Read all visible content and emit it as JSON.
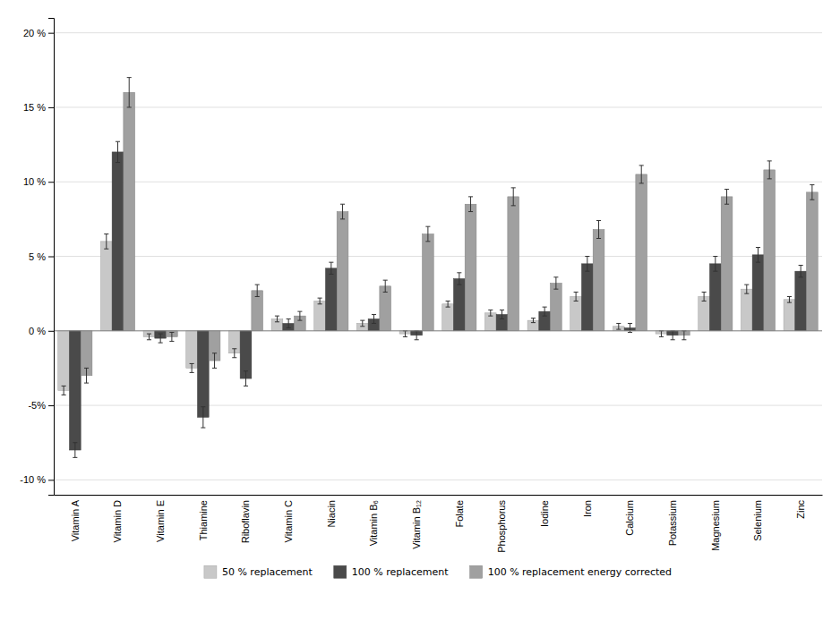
{
  "chart_data": {
    "type": "bar",
    "categories": [
      "Vitamin A",
      "Vitamin D",
      "Vitamin E",
      "Thiamine",
      "Riboflavin",
      "Vitamin C",
      "Niacin",
      "Vitamin B₆",
      "Vitamin B₁₂",
      "Folate",
      "Phosphorus",
      "Iodine",
      "Iron",
      "Calcium",
      "Potassium",
      "Magnesium",
      "Selenium",
      "Zinc"
    ],
    "series": [
      {
        "name": "50 % replacement",
        "color": "#c8c8c8",
        "values": [
          -4.0,
          6.0,
          -0.4,
          -2.5,
          -1.5,
          0.8,
          2.0,
          0.5,
          -0.2,
          1.8,
          1.2,
          0.7,
          2.3,
          0.3,
          -0.2,
          2.3,
          2.8,
          2.1
        ],
        "errors": [
          0.3,
          0.5,
          0.2,
          0.3,
          0.3,
          0.2,
          0.2,
          0.2,
          0.2,
          0.2,
          0.2,
          0.15,
          0.3,
          0.2,
          0.2,
          0.3,
          0.3,
          0.2
        ]
      },
      {
        "name": "100 % replacement",
        "color": "#4a4a4a",
        "values": [
          -8.0,
          12.0,
          -0.5,
          -5.8,
          -3.2,
          0.5,
          4.2,
          0.8,
          -0.3,
          3.5,
          1.1,
          1.3,
          4.5,
          0.2,
          -0.3,
          4.5,
          5.1,
          4.0
        ],
        "errors": [
          0.5,
          0.7,
          0.3,
          0.7,
          0.5,
          0.3,
          0.4,
          0.3,
          0.3,
          0.4,
          0.3,
          0.3,
          0.5,
          0.3,
          0.3,
          0.5,
          0.5,
          0.4
        ]
      },
      {
        "name": "100 % replacement energy corrected",
        "color": "#a0a0a0",
        "values": [
          -3.0,
          16.0,
          -0.4,
          -2.0,
          2.7,
          1.0,
          8.0,
          3.0,
          6.5,
          8.5,
          9.0,
          3.2,
          6.8,
          10.5,
          -0.3,
          9.0,
          10.8,
          9.3
        ],
        "errors": [
          0.5,
          1.0,
          0.3,
          0.5,
          0.4,
          0.3,
          0.5,
          0.4,
          0.5,
          0.5,
          0.6,
          0.4,
          0.6,
          0.6,
          0.3,
          0.5,
          0.6,
          0.5
        ]
      }
    ],
    "ylim": [
      -11,
      21
    ],
    "yticks": [
      {
        "value": -10,
        "label": "-10 %"
      },
      {
        "value": -5,
        "label": "-5%"
      },
      {
        "value": 0,
        "label": "0 %"
      },
      {
        "value": 5,
        "label": "5 %"
      },
      {
        "value": 10,
        "label": "10 %"
      },
      {
        "value": 15,
        "label": "15 %"
      },
      {
        "value": 20,
        "label": "20 %"
      }
    ],
    "grid": true,
    "legend": "bottom"
  }
}
